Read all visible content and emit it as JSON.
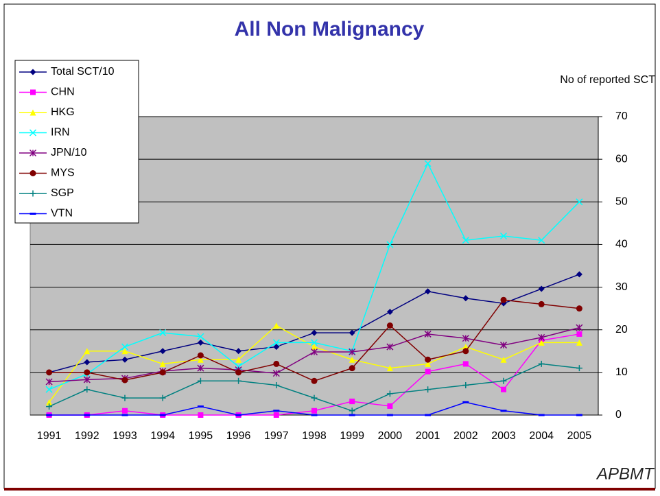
{
  "chart_data": {
    "type": "line",
    "title": "All Non Malignancy",
    "y_axis_label": "No of reported SCT",
    "logo": "APBMT",
    "categories": [
      "1991",
      "1992",
      "1993",
      "1994",
      "1995",
      "1996",
      "1997",
      "1998",
      "1999",
      "2000",
      "2001",
      "2002",
      "2003",
      "2004",
      "2005"
    ],
    "series": [
      {
        "name": "Total SCT/10",
        "color": "#000080",
        "marker": "diamond",
        "values": [
          10,
          12.4,
          13,
          15,
          17,
          15,
          16,
          19.3,
          19.3,
          24.2,
          29,
          27.4,
          26.2,
          29.6,
          33
        ]
      },
      {
        "name": "CHN",
        "color": "#ff00ff",
        "marker": "square",
        "values": [
          0,
          0,
          1,
          0,
          0,
          0,
          0,
          1,
          3.2,
          2.1,
          10.2,
          12,
          6,
          17.5,
          19
        ]
      },
      {
        "name": "HKG",
        "color": "#ffff00",
        "marker": "triangle",
        "values": [
          3,
          15,
          15,
          12,
          13,
          13,
          21,
          16,
          13,
          11,
          12,
          16,
          13,
          17,
          17
        ]
      },
      {
        "name": "IRN",
        "color": "#00ffff",
        "marker": "x",
        "values": [
          6,
          9.6,
          16,
          19.3,
          18.4,
          11.4,
          17,
          17,
          15,
          40,
          59,
          41,
          42,
          41,
          50
        ]
      },
      {
        "name": "JPN/10",
        "color": "#800080",
        "marker": "star",
        "values": [
          7.8,
          8.3,
          8.6,
          10.3,
          11,
          10.6,
          9.8,
          14.8,
          14.8,
          16,
          19,
          18,
          16.4,
          18.2,
          20.5
        ]
      },
      {
        "name": "MYS",
        "color": "#800000",
        "marker": "circle",
        "values": [
          10,
          10,
          8.2,
          10,
          14,
          10,
          12,
          8,
          11,
          21,
          13,
          15,
          27,
          26,
          25
        ]
      },
      {
        "name": "SGP",
        "color": "#008080",
        "marker": "plus",
        "values": [
          2,
          6,
          4,
          4,
          8,
          8,
          7,
          4,
          1,
          5,
          6,
          7,
          8,
          12,
          11
        ]
      },
      {
        "name": "VTN",
        "color": "#0000ff",
        "marker": "dash",
        "values": [
          0,
          0,
          0,
          0,
          2,
          0,
          1,
          0,
          0,
          0,
          0,
          3,
          1,
          0,
          0
        ]
      }
    ],
    "ylim": [
      0,
      70
    ],
    "yticks": [
      0,
      10,
      20,
      30,
      40,
      50,
      60,
      70
    ],
    "grid": true,
    "legend": "upper left"
  }
}
